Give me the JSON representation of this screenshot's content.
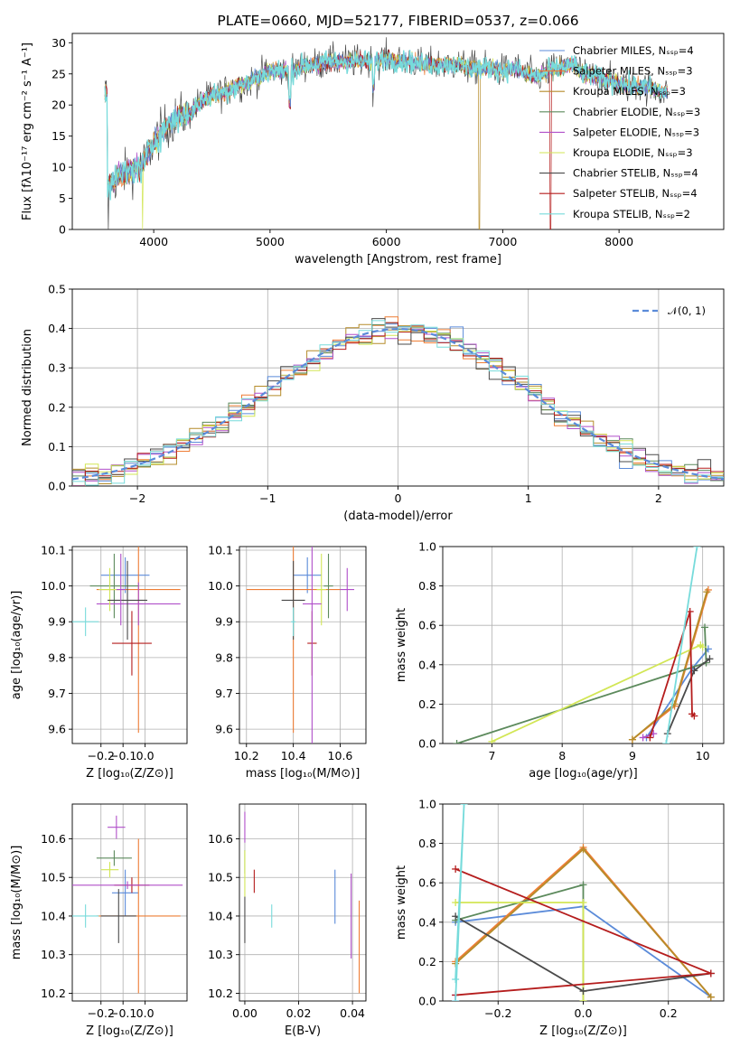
{
  "colors": {
    "chabrier_miles": "#5b8bd9",
    "salpeter_miles": "#ee7d35",
    "kroupa_miles": "#b58c2a",
    "chabrier_elodie": "#5c8a5c",
    "salpeter_elodie": "#b04fc9",
    "kroupa_elodie": "#d2e655",
    "chabrier_stelib": "#4a4a4a",
    "salpeter_stelib": "#b51d1d",
    "kroupa_stelib": "#77dbdb",
    "normal": "#5b8bd9"
  },
  "chart_data": [
    {
      "id": "spectrum",
      "type": "line",
      "title": "PLATE=0660, MJD=52177, FIBERID=0537, z=0.066",
      "xlabel": "wavelength [Angstrom, rest frame]",
      "ylabel": "Flux [fλ10⁻¹⁷ erg cm⁻² s⁻¹ A⁻¹]",
      "xlim": [
        3300,
        8900
      ],
      "ylim": [
        0,
        31.5
      ],
      "xticks": [
        4000,
        5000,
        6000,
        7000,
        8000
      ],
      "yticks": [
        0,
        5,
        10,
        15,
        20,
        25,
        30
      ],
      "legend_position": "right",
      "series": [
        {
          "name": "Chabrier MILES, Nₛₛₚ=4"
        },
        {
          "name": "Salpeter MILES, Nₛₛₚ=3"
        },
        {
          "name": "Kroupa MILES, Nₛₛₚ=3"
        },
        {
          "name": "Chabrier ELODIE, Nₛₛₚ=3"
        },
        {
          "name": "Salpeter ELODIE, Nₛₛₚ=3"
        },
        {
          "name": "Kroupa ELODIE, Nₛₛₚ=3"
        },
        {
          "name": "Chabrier STELIB, Nₛₛₚ=4"
        },
        {
          "name": "Salpeter STELIB, Nₛₛₚ=4"
        },
        {
          "name": "Kroupa STELIB, Nₛₛₚ=2"
        }
      ],
      "continuum": [
        [
          3600,
          7
        ],
        [
          3700,
          8.5
        ],
        [
          3800,
          9.5
        ],
        [
          3900,
          10
        ],
        [
          4000,
          14
        ],
        [
          4100,
          16.5
        ],
        [
          4200,
          18
        ],
        [
          4300,
          18.5
        ],
        [
          4400,
          20.5
        ],
        [
          4500,
          21.5
        ],
        [
          4600,
          22
        ],
        [
          4700,
          23
        ],
        [
          4800,
          23.5
        ],
        [
          4900,
          24.5
        ],
        [
          5000,
          25.5
        ],
        [
          5100,
          25.5
        ],
        [
          5200,
          25.5
        ],
        [
          5300,
          26.5
        ],
        [
          5400,
          26.5
        ],
        [
          5500,
          27
        ],
        [
          5600,
          27
        ],
        [
          5700,
          27
        ],
        [
          5800,
          27
        ],
        [
          5900,
          27
        ],
        [
          6000,
          27.5
        ],
        [
          6100,
          27
        ],
        [
          6200,
          27
        ],
        [
          6300,
          26.5
        ],
        [
          6400,
          26.5
        ],
        [
          6500,
          26.5
        ],
        [
          6600,
          26.5
        ],
        [
          6700,
          26
        ],
        [
          6800,
          26
        ],
        [
          6900,
          26
        ],
        [
          7000,
          25.5
        ],
        [
          7100,
          26
        ],
        [
          7200,
          25
        ],
        [
          7300,
          24.5
        ],
        [
          7400,
          25.5
        ],
        [
          7500,
          26
        ],
        [
          7600,
          26.5
        ],
        [
          7700,
          25
        ],
        [
          7800,
          24.5
        ],
        [
          7900,
          24
        ],
        [
          8000,
          23.5
        ],
        [
          8100,
          23
        ],
        [
          8200,
          23
        ],
        [
          8300,
          22.5
        ],
        [
          8400,
          22
        ]
      ],
      "features": [
        [
          3600,
          "dip",
          3
        ],
        [
          3610,
          "gap",
          0
        ],
        [
          3905,
          "gap",
          0
        ],
        [
          5170,
          "dip",
          18.5
        ],
        [
          5890,
          "dip",
          22.5
        ],
        [
          6800,
          "gap",
          0
        ],
        [
          7410,
          "gap",
          0
        ]
      ]
    },
    {
      "id": "residuals",
      "type": "histogram",
      "xlabel": "(data-model)/error",
      "ylabel": "Normed distribution",
      "xlim": [
        -2.5,
        2.5
      ],
      "ylim": [
        0,
        0.5
      ],
      "xticks": [
        -2,
        -1,
        0,
        1,
        2
      ],
      "yticks": [
        0.0,
        0.1,
        0.2,
        0.3,
        0.4,
        0.5
      ],
      "legend": {
        "label": "𝒩(0, 1)",
        "position": "top-right"
      },
      "bin_width": 0.1,
      "reference": "normal pdf mean 0 sd 1"
    },
    {
      "id": "z_age",
      "type": "scatter",
      "xlabel": "Z [log₁₀(Z/Z⊙)]",
      "ylabel": "age  [log₁₀(age/yr)]",
      "xlim": [
        -0.33,
        0.19
      ],
      "ylim": [
        9.56,
        10.11
      ],
      "xticks": [
        -0.2,
        -0.1,
        0.0
      ],
      "yticks": [
        9.6,
        9.7,
        9.8,
        9.9,
        10.0,
        10.1
      ],
      "points": [
        {
          "series": "chabrier_miles",
          "x": -0.09,
          "y": 10.03,
          "xerr": 0.11,
          "yerr": 0.05
        },
        {
          "series": "salpeter_miles",
          "x": -0.03,
          "y": 9.99,
          "xerr": 0.19,
          "yerr": 0.4
        },
        {
          "series": "chabrier_elodie",
          "x": -0.14,
          "y": 10.0,
          "xerr": 0.11,
          "yerr": 0.09
        },
        {
          "series": "salpeter_elodie",
          "x": -0.03,
          "y": 9.95,
          "xerr": 0.19,
          "yerr": 0.06
        },
        {
          "series": "kroupa_elodie",
          "x": -0.16,
          "y": 9.99,
          "xerr": 0.05,
          "yerr": 0.06
        },
        {
          "series": "chabrier_stelib",
          "x": -0.08,
          "y": 9.96,
          "xerr": 0.09,
          "yerr": 0.11
        },
        {
          "series": "salpeter_stelib",
          "x": -0.06,
          "y": 9.84,
          "xerr": 0.09,
          "yerr": 0.09
        },
        {
          "series": "kroupa_stelib",
          "x": -0.27,
          "y": 9.9,
          "xerr": 0.06,
          "yerr": 0.04
        },
        {
          "series": "salpeter_elodie",
          "x": -0.11,
          "y": 9.99,
          "xerr": 0.02,
          "yerr": 0.1
        }
      ]
    },
    {
      "id": "mass_age",
      "type": "scatter",
      "xlabel": "mass [log₁₀(M/M⊙)]",
      "ylabel": "",
      "xlim": [
        10.17,
        10.71
      ],
      "ylim": [
        9.56,
        10.11
      ],
      "xticks": [
        10.2,
        10.4,
        10.6
      ],
      "yticks": [
        9.6,
        9.7,
        9.8,
        9.9,
        10.0,
        10.1
      ],
      "points": [
        {
          "series": "chabrier_miles",
          "x": 10.46,
          "y": 10.03,
          "xerr": 0.06,
          "yerr": 0.05
        },
        {
          "series": "salpeter_miles",
          "x": 10.4,
          "y": 9.99,
          "xerr": 0.2,
          "yerr": 0.4
        },
        {
          "series": "chabrier_elodie",
          "x": 10.55,
          "y": 10.0,
          "xerr": 0.02,
          "yerr": 0.09
        },
        {
          "series": "salpeter_elodie",
          "x": 10.63,
          "y": 9.99,
          "xerr": 0.03,
          "yerr": 0.06
        },
        {
          "series": "kroupa_elodie",
          "x": 10.52,
          "y": 9.99,
          "xerr": 0.02,
          "yerr": 0.1
        },
        {
          "series": "chabrier_stelib",
          "x": 10.4,
          "y": 9.96,
          "xerr": 0.05,
          "yerr": 0.11
        },
        {
          "series": "salpeter_stelib",
          "x": 10.48,
          "y": 9.84,
          "xerr": 0.02,
          "yerr": 0.09
        },
        {
          "series": "kroupa_stelib",
          "x": 10.4,
          "y": 9.9,
          "xerr": 0.01,
          "yerr": 0.04
        },
        {
          "series": "salpeter_elodie",
          "x": 10.48,
          "y": 9.95,
          "xerr": 0.04,
          "yerr": 0.4
        }
      ]
    },
    {
      "id": "age_weight",
      "type": "line",
      "xlabel": "age  [log₁₀(age/yr)]",
      "ylabel": "mass weight",
      "xlim": [
        6.3,
        10.3
      ],
      "ylim": [
        0,
        1.0
      ],
      "xticks": [
        7,
        8,
        9,
        10
      ],
      "yticks": [
        0.0,
        0.2,
        0.4,
        0.6,
        0.8,
        1.0
      ],
      "series": [
        {
          "series": "chabrier_miles",
          "points": [
            [
              9.2,
              0.03
            ],
            [
              9.85,
              0.38
            ],
            [
              10.08,
              0.48
            ]
          ]
        },
        {
          "series": "salpeter_miles",
          "points": [
            [
              9.0,
              0.02
            ],
            [
              9.6,
              0.19
            ],
            [
              10.08,
              0.78
            ]
          ]
        },
        {
          "series": "kroupa_miles",
          "points": [
            [
              9.0,
              0.02
            ],
            [
              9.6,
              0.2
            ],
            [
              10.06,
              0.77
            ]
          ]
        },
        {
          "series": "chabrier_elodie",
          "points": [
            [
              6.5,
              0.0
            ],
            [
              10.05,
              0.41
            ],
            [
              10.03,
              0.59
            ]
          ]
        },
        {
          "series": "salpeter_elodie",
          "points": [
            [
              9.15,
              0.03
            ],
            [
              9.3,
              0.05
            ]
          ]
        },
        {
          "series": "kroupa_elodie",
          "points": [
            [
              7.0,
              0.01
            ],
            [
              9.97,
              0.5
            ],
            [
              10.0,
              0.49
            ]
          ]
        },
        {
          "series": "chabrier_stelib",
          "points": [
            [
              9.5,
              0.05
            ],
            [
              9.88,
              0.37
            ],
            [
              10.1,
              0.43
            ]
          ]
        },
        {
          "series": "salpeter_stelib",
          "points": [
            [
              9.25,
              0.03
            ],
            [
              9.82,
              0.67
            ],
            [
              9.85,
              0.15
            ],
            [
              9.88,
              0.14
            ]
          ]
        },
        {
          "series": "kroupa_stelib",
          "points": [
            [
              9.48,
              0.0
            ],
            [
              9.92,
              1.0
            ]
          ]
        }
      ]
    },
    {
      "id": "z_mass",
      "type": "scatter",
      "xlabel": "Z [log₁₀(Z/Z⊙)]",
      "ylabel": "mass [log₁₀(M/M⊙)]",
      "xlim": [
        -0.33,
        0.19
      ],
      "ylim": [
        10.18,
        10.69
      ],
      "xticks": [
        -0.2,
        -0.1,
        0.0
      ],
      "yticks": [
        10.2,
        10.3,
        10.4,
        10.5,
        10.6
      ],
      "points": [
        {
          "series": "chabrier_miles",
          "x": -0.09,
          "y": 10.46,
          "xerr": 0.06,
          "yerr": 0.06
        },
        {
          "series": "salpeter_miles",
          "x": -0.03,
          "y": 10.4,
          "xerr": 0.19,
          "yerr": 0.2
        },
        {
          "series": "chabrier_elodie",
          "x": -0.14,
          "y": 10.55,
          "xerr": 0.08,
          "yerr": 0.02
        },
        {
          "series": "salpeter_elodie",
          "x": -0.13,
          "y": 10.63,
          "xerr": 0.04,
          "yerr": 0.03
        },
        {
          "series": "kroupa_elodie",
          "x": -0.16,
          "y": 10.52,
          "xerr": 0.04,
          "yerr": 0.02
        },
        {
          "series": "chabrier_stelib",
          "x": -0.12,
          "y": 10.4,
          "xerr": 0.08,
          "yerr": 0.07
        },
        {
          "series": "salpeter_stelib",
          "x": -0.06,
          "y": 10.48,
          "xerr": 0.08,
          "yerr": 0.02
        },
        {
          "series": "kroupa_stelib",
          "x": -0.27,
          "y": 10.4,
          "xerr": 0.06,
          "yerr": 0.03
        },
        {
          "series": "salpeter_elodie",
          "x": -0.08,
          "y": 10.48,
          "xerr": 0.25,
          "yerr": 0.01
        }
      ]
    },
    {
      "id": "ebv_mass",
      "type": "scatter",
      "xlabel": "E(B-V)",
      "ylabel": "",
      "xlim": [
        -0.002,
        0.045
      ],
      "ylim": [
        10.18,
        10.69
      ],
      "xticks": [
        0.0,
        0.02,
        0.04
      ],
      "yticks": [
        10.2,
        10.3,
        10.4,
        10.5,
        10.6
      ],
      "points": [
        {
          "series": "chabrier_miles",
          "x": 0.0335,
          "y": 10.45,
          "yerr": 0.07
        },
        {
          "series": "salpeter_miles",
          "x": 0.0425,
          "y": 10.32,
          "yerr": 0.12
        },
        {
          "series": "chabrier_elodie",
          "x": 0.0,
          "y": 10.54,
          "yerr": 0.03
        },
        {
          "series": "salpeter_elodie",
          "x": 0.0,
          "y": 10.63,
          "yerr": 0.04
        },
        {
          "series": "kroupa_elodie",
          "x": 0.0,
          "y": 10.51,
          "yerr": 0.06
        },
        {
          "series": "chabrier_stelib",
          "x": 0.0,
          "y": 10.39,
          "yerr": 0.06
        },
        {
          "series": "salpeter_stelib",
          "x": 0.0035,
          "y": 10.49,
          "yerr": 0.03
        },
        {
          "series": "kroupa_stelib",
          "x": 0.01,
          "y": 10.4,
          "yerr": 0.03
        },
        {
          "series": "salpeter_elodie",
          "x": 0.0395,
          "y": 10.4,
          "yerr": 0.11
        }
      ]
    },
    {
      "id": "z_weight",
      "type": "line",
      "xlabel": "Z [log₁₀(Z/Z⊙)]",
      "ylabel": "mass weight",
      "xlim": [
        -0.33,
        0.33
      ],
      "ylim": [
        0,
        1.0
      ],
      "xticks": [
        -0.2,
        0.0,
        0.2
      ],
      "yticks": [
        0.0,
        0.2,
        0.4,
        0.6,
        0.8,
        1.0
      ],
      "series": [
        {
          "series": "chabrier_miles",
          "points": [
            [
              -0.3,
              0.4
            ],
            [
              0.0,
              0.48
            ],
            [
              0.3,
              0.02
            ]
          ]
        },
        {
          "series": "salpeter_miles",
          "points": [
            [
              -0.3,
              0.2
            ],
            [
              0.0,
              0.78
            ],
            [
              0.3,
              0.02
            ]
          ]
        },
        {
          "series": "kroupa_miles",
          "points": [
            [
              -0.3,
              0.19
            ],
            [
              0.0,
              0.77
            ],
            [
              0.3,
              0.02
            ]
          ]
        },
        {
          "series": "chabrier_elodie",
          "points": [
            [
              -0.3,
              0.41
            ],
            [
              0.0,
              0.59
            ],
            [
              0.0,
              0.0
            ]
          ]
        },
        {
          "series": "salpeter_elodie",
          "points": [
            [
              -0.3,
              0.0
            ],
            [
              -0.3,
              0.03
            ]
          ]
        },
        {
          "series": "kroupa_elodie",
          "points": [
            [
              -0.3,
              0.5
            ],
            [
              0.0,
              0.5
            ],
            [
              0.0,
              0.0
            ]
          ]
        },
        {
          "series": "chabrier_stelib",
          "points": [
            [
              -0.3,
              0.43
            ],
            [
              0.0,
              0.05
            ],
            [
              0.3,
              0.14
            ]
          ]
        },
        {
          "series": "salpeter_stelib",
          "points": [
            [
              -0.3,
              0.03
            ],
            [
              0.3,
              0.14
            ],
            [
              -0.3,
              0.67
            ]
          ]
        },
        {
          "series": "kroupa_stelib",
          "points": [
            [
              -0.3,
              0.0
            ],
            [
              -0.28,
              1.0
            ],
            [
              -0.3,
              0.11
            ]
          ]
        }
      ]
    }
  ]
}
